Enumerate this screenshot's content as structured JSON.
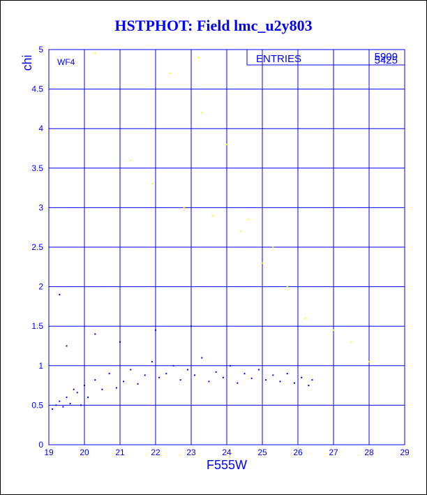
{
  "title": "HSTPHOT: Field lmc_u2y803",
  "colors": {
    "axis": "#0000ff",
    "primary": "#0000ff",
    "secondary": "#ffff00"
  },
  "stats_box": {
    "label": "ENTRIES",
    "value": "5909",
    "value_overlap": "5425"
  },
  "chart_data": {
    "type": "scatter",
    "title": "HSTPHOT: Field lmc_u2y803",
    "annotation": "WF4",
    "xlabel": "F555W",
    "ylabel": "chi",
    "xlim": [
      19,
      29
    ],
    "ylim": [
      0,
      5
    ],
    "grid": true,
    "x_ticks": [
      "19",
      "20",
      "21",
      "22",
      "23",
      "24",
      "25",
      "26",
      "27",
      "28",
      "29"
    ],
    "y_ticks": [
      "0",
      "0.5",
      "1",
      "1.5",
      "2",
      "2.5",
      "3",
      "3.5",
      "4",
      "4.5",
      "5"
    ],
    "series": [
      {
        "color": "#0000ff",
        "description": "dense cloud, chi mostly 0.4-1.2, rising to ~1.5; magnitudes 19-26.5",
        "values": [
          [
            19.1,
            0.45
          ],
          [
            19.2,
            0.5
          ],
          [
            19.3,
            0.55
          ],
          [
            19.4,
            0.48
          ],
          [
            19.5,
            0.6
          ],
          [
            19.6,
            0.52
          ],
          [
            19.7,
            0.7
          ],
          [
            19.8,
            0.66
          ],
          [
            19.9,
            0.5
          ],
          [
            20.0,
            0.75
          ],
          [
            20.1,
            0.6
          ],
          [
            20.3,
            0.82
          ],
          [
            20.5,
            0.7
          ],
          [
            20.7,
            0.9
          ],
          [
            20.9,
            0.72
          ],
          [
            21.1,
            0.8
          ],
          [
            21.3,
            0.95
          ],
          [
            21.5,
            0.77
          ],
          [
            21.7,
            0.88
          ],
          [
            21.9,
            1.05
          ],
          [
            22.1,
            0.85
          ],
          [
            22.3,
            0.9
          ],
          [
            22.5,
            1.0
          ],
          [
            22.7,
            0.82
          ],
          [
            22.9,
            0.95
          ],
          [
            23.1,
            0.88
          ],
          [
            23.3,
            1.1
          ],
          [
            23.5,
            0.8
          ],
          [
            23.7,
            0.92
          ],
          [
            23.9,
            0.85
          ],
          [
            24.1,
            1.0
          ],
          [
            24.3,
            0.78
          ],
          [
            24.5,
            0.9
          ],
          [
            24.7,
            0.84
          ],
          [
            24.9,
            0.95
          ],
          [
            25.1,
            0.82
          ],
          [
            25.3,
            0.88
          ],
          [
            25.5,
            0.8
          ],
          [
            25.7,
            0.9
          ],
          [
            25.9,
            0.78
          ],
          [
            26.1,
            0.85
          ],
          [
            26.3,
            0.75
          ],
          [
            26.4,
            0.82
          ],
          [
            19.3,
            1.9
          ],
          [
            19.5,
            1.25
          ],
          [
            20.3,
            1.4
          ],
          [
            21.0,
            1.3
          ],
          [
            22.0,
            1.45
          ],
          [
            23.0,
            1.5
          ]
        ]
      },
      {
        "color": "#ffff00",
        "description": "sparse outliers, chi ~1.1-5",
        "values": [
          [
            20.3,
            4.95
          ],
          [
            21.3,
            3.6
          ],
          [
            21.9,
            3.3
          ],
          [
            22.4,
            4.7
          ],
          [
            22.8,
            3.0
          ],
          [
            23.2,
            4.9
          ],
          [
            23.3,
            4.2
          ],
          [
            23.6,
            2.9
          ],
          [
            24.0,
            3.8
          ],
          [
            24.4,
            2.7
          ],
          [
            24.6,
            2.85
          ],
          [
            25.0,
            2.3
          ],
          [
            25.3,
            2.5
          ],
          [
            25.7,
            2.0
          ],
          [
            26.2,
            1.6
          ],
          [
            27.0,
            1.45
          ],
          [
            27.5,
            1.3
          ],
          [
            28.0,
            1.05
          ]
        ]
      }
    ]
  }
}
